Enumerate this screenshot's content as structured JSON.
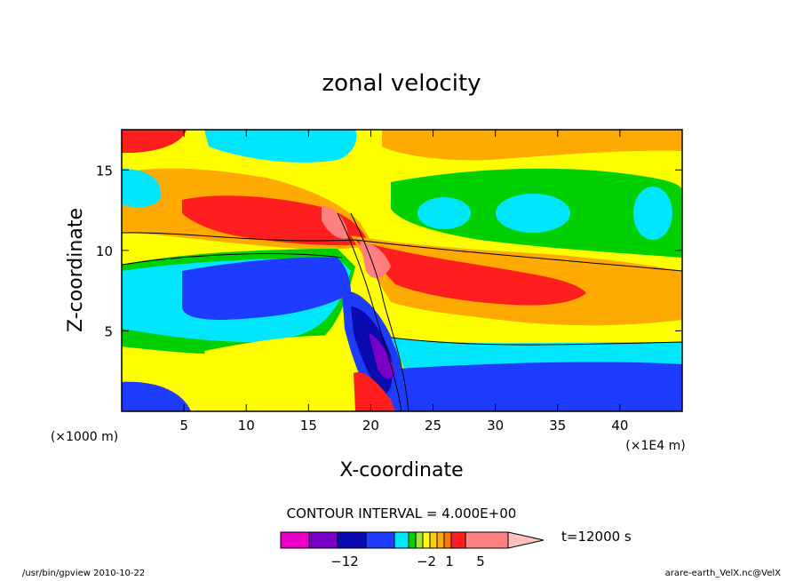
{
  "chart_data": {
    "type": "heatmap",
    "title": "zonal velocity",
    "xlabel": "X-coordinate",
    "ylabel": "Z-coordinate",
    "x_units": "(×1E4 m)",
    "y_units": "(×1000 m)",
    "x_ticks": [
      "5",
      "10",
      "15",
      "20",
      "25",
      "30",
      "35",
      "40"
    ],
    "y_ticks": [
      "5",
      "10",
      "15"
    ],
    "xlim": [
      0,
      45
    ],
    "ylim": [
      0,
      17.5
    ],
    "contour_interval_label": "CONTOUR INTERVAL = 4.000E+00",
    "time_label": "t=12000 s",
    "colorbar": {
      "tick_labels": [
        "−12",
        "−2",
        "1",
        "5"
      ],
      "colors": [
        "#e800c8",
        "#7a00c8",
        "#0a0ab0",
        "#1e3cff",
        "#00e6ff",
        "#00d000",
        "#a0e632",
        "#ffff00",
        "#ffd000",
        "#ffaa00",
        "#ff7800",
        "#ff1e1e",
        "#ff8080",
        "#ffc0c0"
      ]
    },
    "colormap": [
      "#e800c8",
      "#7a00c8",
      "#0a0ab0",
      "#1e3cff",
      "#00e6ff",
      "#00d000",
      "#a0e632",
      "#ffff00",
      "#ffd000",
      "#ffaa00",
      "#ff7800",
      "#ff1e1e",
      "#ff8080",
      "#ffc0c0"
    ],
    "grid": false
  },
  "footer": {
    "left": "/usr/bin/gpview  2010-10-22",
    "right": "arare-earth_VelX.nc@VelX"
  }
}
